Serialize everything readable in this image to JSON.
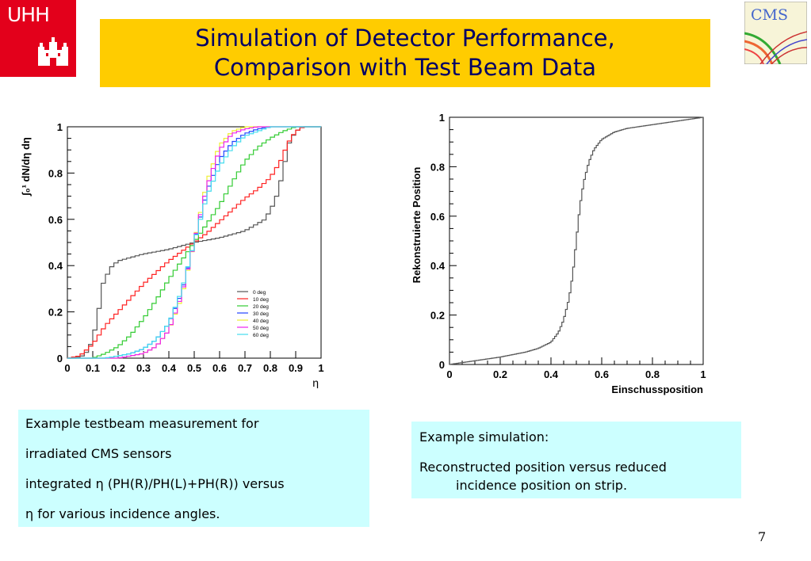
{
  "logos": {
    "university": "UHH",
    "experiment": "CMS"
  },
  "title": {
    "line1": "Simulation of Detector Performance,",
    "line2": "Comparison with Test Beam Data"
  },
  "left_text": {
    "lines": [
      "Example testbeam measurement for",
      "irradiated  CMS sensors",
      "integrated η (PH(R)/PH(L)+PH(R)) versus",
      "η for various incidence angles."
    ]
  },
  "right_text": {
    "p1": "Example simulation:",
    "p2a": "Reconstructed position versus reduced",
    "p2b": "incidence position on strip."
  },
  "page_number": "7",
  "colors": {
    "title_bg": "#ffcc00",
    "title_text": "#000066",
    "textbox_bg": "#ccffff",
    "logo_red": "#e3001b"
  },
  "chart_data": [
    {
      "type": "line",
      "xlabel": "η",
      "ylabel": "∫₀¹ dN/dη dη",
      "xlim": [
        0,
        1
      ],
      "ylim": [
        0,
        1
      ],
      "xticks": [
        "0",
        "0.1",
        "0.2",
        "0.3",
        "0.4",
        "0.5",
        "0.6",
        "0.7",
        "0.8",
        "0.9",
        "1"
      ],
      "yticks": [
        "0",
        "0.2",
        "0.4",
        "0.6",
        "0.8",
        "1"
      ],
      "legend_position": "bottom-right",
      "series": [
        {
          "name": "0 deg",
          "color": "#555555",
          "x": [
            0,
            0.03,
            0.06,
            0.08,
            0.1,
            0.12,
            0.14,
            0.17,
            0.2,
            0.3,
            0.4,
            0.5,
            0.6,
            0.7,
            0.78,
            0.82,
            0.85,
            0.87,
            0.9,
            0.93,
            0.96,
            1
          ],
          "y": [
            0,
            0,
            0.01,
            0.03,
            0.08,
            0.18,
            0.32,
            0.39,
            0.42,
            0.45,
            0.47,
            0.5,
            0.52,
            0.55,
            0.6,
            0.68,
            0.8,
            0.92,
            0.98,
            1,
            1,
            1
          ]
        },
        {
          "name": "10 deg",
          "color": "#ff2222",
          "x": [
            0,
            0.05,
            0.1,
            0.15,
            0.2,
            0.25,
            0.3,
            0.35,
            0.4,
            0.45,
            0.5,
            0.55,
            0.6,
            0.65,
            0.7,
            0.75,
            0.8,
            0.84,
            0.87,
            0.9,
            0.93,
            0.96,
            1
          ],
          "y": [
            0,
            0.01,
            0.06,
            0.14,
            0.2,
            0.26,
            0.32,
            0.37,
            0.42,
            0.46,
            0.5,
            0.54,
            0.59,
            0.64,
            0.69,
            0.73,
            0.78,
            0.85,
            0.93,
            0.98,
            1,
            1,
            1
          ]
        },
        {
          "name": "20 deg",
          "color": "#33cc33",
          "x": [
            0,
            0.1,
            0.15,
            0.2,
            0.25,
            0.3,
            0.35,
            0.4,
            0.45,
            0.5,
            0.55,
            0.6,
            0.65,
            0.7,
            0.75,
            0.8,
            0.85,
            0.9,
            1
          ],
          "y": [
            0,
            0,
            0.02,
            0.05,
            0.1,
            0.17,
            0.25,
            0.34,
            0.42,
            0.5,
            0.58,
            0.66,
            0.76,
            0.85,
            0.91,
            0.95,
            0.98,
            1,
            1
          ]
        },
        {
          "name": "30 deg",
          "color": "#2244ff",
          "x": [
            0,
            0.15,
            0.2,
            0.25,
            0.3,
            0.35,
            0.4,
            0.45,
            0.5,
            0.55,
            0.6,
            0.65,
            0.7,
            0.75,
            0.8,
            1
          ],
          "y": [
            0,
            0,
            0.01,
            0.02,
            0.04,
            0.08,
            0.15,
            0.28,
            0.5,
            0.72,
            0.86,
            0.93,
            0.97,
            0.99,
            1,
            1
          ]
        },
        {
          "name": "40 deg",
          "color": "#eeee33",
          "x": [
            0,
            0.2,
            0.25,
            0.3,
            0.35,
            0.4,
            0.45,
            0.5,
            0.55,
            0.6,
            0.65,
            0.7,
            0.75,
            1
          ],
          "y": [
            0,
            0,
            0.01,
            0.02,
            0.05,
            0.12,
            0.26,
            0.5,
            0.76,
            0.92,
            0.98,
            1,
            1,
            1
          ]
        },
        {
          "name": "50 deg",
          "color": "#ee22ee",
          "x": [
            0,
            0.2,
            0.25,
            0.3,
            0.35,
            0.4,
            0.45,
            0.5,
            0.55,
            0.6,
            0.65,
            0.7,
            0.75,
            1
          ],
          "y": [
            0,
            0,
            0.01,
            0.02,
            0.05,
            0.12,
            0.27,
            0.5,
            0.74,
            0.9,
            0.97,
            0.99,
            1,
            1
          ]
        },
        {
          "name": "60 deg",
          "color": "#44ddee",
          "x": [
            0,
            0.15,
            0.2,
            0.25,
            0.3,
            0.35,
            0.4,
            0.45,
            0.5,
            0.55,
            0.6,
            0.65,
            0.7,
            0.75,
            0.8,
            1
          ],
          "y": [
            0,
            0,
            0.01,
            0.02,
            0.04,
            0.08,
            0.15,
            0.29,
            0.5,
            0.7,
            0.83,
            0.91,
            0.96,
            0.98,
            1,
            1
          ]
        }
      ]
    },
    {
      "type": "line",
      "xlabel": "Einschussposition",
      "ylabel": "Rekonstruierte Position",
      "xlim": [
        0,
        1
      ],
      "ylim": [
        0,
        1
      ],
      "xticks": [
        "0",
        "0.2",
        "0.4",
        "0.6",
        "0.8",
        "1"
      ],
      "yticks": [
        "0",
        "0.2",
        "0.4",
        "0.6",
        "0.8",
        "1"
      ],
      "series": [
        {
          "color": "#555555",
          "x": [
            0,
            0.1,
            0.2,
            0.3,
            0.35,
            0.4,
            0.43,
            0.45,
            0.47,
            0.48,
            0.49,
            0.5,
            0.51,
            0.52,
            0.53,
            0.55,
            0.57,
            0.6,
            0.65,
            0.7,
            0.8,
            0.9,
            1
          ],
          "y": [
            0,
            0.015,
            0.03,
            0.05,
            0.065,
            0.09,
            0.13,
            0.18,
            0.26,
            0.32,
            0.4,
            0.5,
            0.6,
            0.68,
            0.74,
            0.82,
            0.87,
            0.91,
            0.94,
            0.955,
            0.97,
            0.985,
            1
          ]
        }
      ]
    }
  ]
}
